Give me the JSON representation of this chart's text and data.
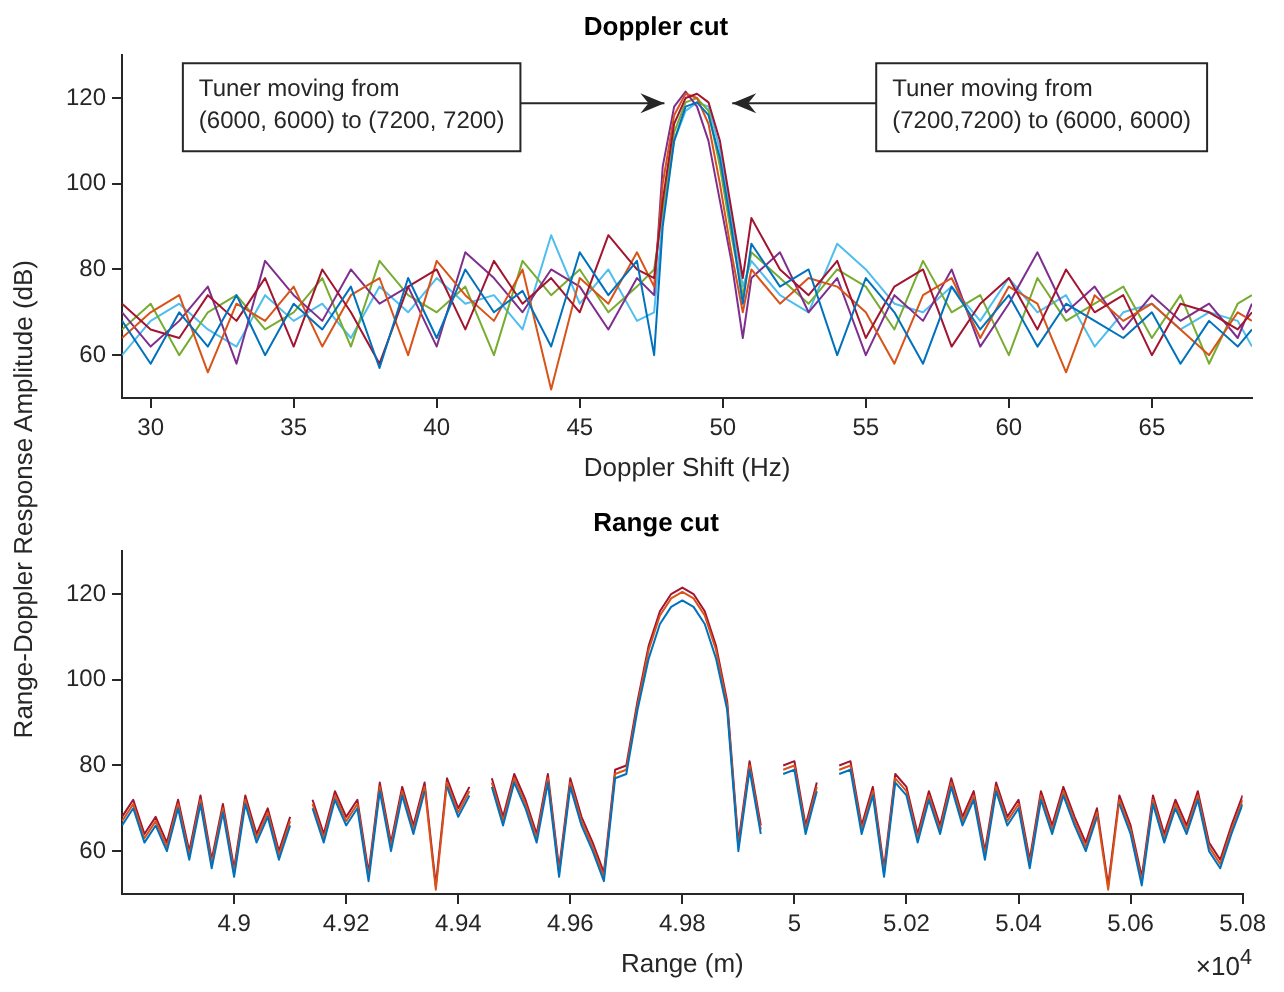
{
  "chart_data": [
    {
      "type": "line",
      "title": "Doppler cut",
      "xlabel": "Doppler Shift (Hz)",
      "ylabel": "Range-Doppler Response Amplitude (dB)",
      "x": [
        29,
        30,
        31,
        32,
        33,
        34,
        35,
        36,
        37,
        38,
        39,
        40,
        41,
        42,
        43,
        44,
        45,
        46,
        47,
        47.6,
        47.9,
        48.3,
        48.7,
        49.1,
        49.5,
        49.9,
        50.3,
        50.7,
        51,
        52,
        53,
        54,
        55,
        56,
        57,
        58,
        59,
        60,
        61,
        62,
        63,
        64,
        65,
        66,
        67,
        68,
        68.5
      ],
      "series": [
        {
          "color": "#0072bd",
          "values": [
            68,
            58,
            70,
            62,
            74,
            60,
            72,
            66,
            76,
            57,
            78,
            64,
            80,
            70,
            75,
            62,
            84,
            74,
            82,
            60,
            90,
            110,
            118,
            119,
            116,
            106,
            90,
            72,
            86,
            76,
            80,
            60,
            78,
            70,
            58,
            76,
            66,
            74,
            62,
            72,
            68,
            64,
            70,
            58,
            68,
            62,
            66
          ]
        },
        {
          "color": "#a2142f",
          "values": [
            72,
            66,
            64,
            74,
            68,
            78,
            62,
            80,
            70,
            58,
            76,
            80,
            66,
            82,
            72,
            78,
            70,
            88,
            80,
            78,
            96,
            114,
            120,
            121,
            119,
            110,
            94,
            78,
            92,
            80,
            74,
            82,
            64,
            76,
            80,
            62,
            72,
            78,
            66,
            80,
            70,
            74,
            60,
            72,
            70,
            66,
            70
          ]
        },
        {
          "color": "#d95319",
          "values": [
            64,
            70,
            74,
            56,
            72,
            68,
            76,
            62,
            74,
            78,
            60,
            82,
            74,
            68,
            80,
            52,
            78,
            72,
            84,
            76,
            100,
            116,
            121,
            120,
            114,
            100,
            84,
            70,
            80,
            72,
            78,
            76,
            70,
            58,
            74,
            78,
            64,
            76,
            72,
            56,
            74,
            68,
            72,
            66,
            60,
            70,
            68
          ]
        },
        {
          "color": "#7e2f8e",
          "values": [
            70,
            62,
            68,
            76,
            58,
            82,
            74,
            68,
            80,
            72,
            76,
            62,
            84,
            78,
            70,
            80,
            76,
            66,
            78,
            74,
            104,
            118,
            121.5,
            118,
            110,
            96,
            82,
            64,
            78,
            84,
            70,
            78,
            60,
            74,
            68,
            80,
            62,
            72,
            84,
            70,
            76,
            66,
            74,
            68,
            72,
            64,
            72
          ]
        },
        {
          "color": "#77ac30",
          "values": [
            66,
            72,
            60,
            70,
            74,
            66,
            70,
            78,
            62,
            82,
            74,
            70,
            76,
            60,
            82,
            74,
            80,
            70,
            76,
            80,
            94,
            112,
            119,
            120,
            117,
            104,
            88,
            74,
            84,
            78,
            72,
            80,
            76,
            66,
            82,
            70,
            74,
            60,
            78,
            68,
            72,
            76,
            64,
            74,
            58,
            72,
            74
          ]
        },
        {
          "color": "#4dbeee",
          "values": [
            60,
            68,
            72,
            66,
            62,
            74,
            68,
            72,
            64,
            76,
            70,
            78,
            72,
            74,
            66,
            88,
            72,
            80,
            68,
            70,
            92,
            110,
            117,
            119,
            118,
            108,
            92,
            76,
            82,
            74,
            70,
            86,
            80,
            72,
            70,
            76,
            68,
            78,
            70,
            74,
            62,
            70,
            72,
            66,
            70,
            68,
            62
          ]
        }
      ],
      "xlim": [
        29,
        68.5
      ],
      "xticks": [
        30,
        35,
        40,
        45,
        50,
        55,
        60,
        65
      ],
      "ylim": [
        50,
        130
      ],
      "yticks": [
        60,
        80,
        100,
        120
      ],
      "annotations": [
        "Tuner moving from\n(6000, 6000) to (7200, 7200)",
        "Tuner moving from\n(7200,7200) to (6000, 6000)"
      ]
    },
    {
      "type": "line",
      "title": "Range cut",
      "xlabel": "Range (m)",
      "x": [
        4.88,
        4.882,
        4.884,
        4.886,
        4.888,
        4.89,
        4.892,
        4.894,
        4.896,
        4.898,
        4.9,
        4.902,
        4.904,
        4.906,
        4.908,
        4.91,
        4.912,
        4.914,
        4.916,
        4.918,
        4.92,
        4.922,
        4.924,
        4.926,
        4.928,
        4.93,
        4.932,
        4.934,
        4.936,
        4.938,
        4.94,
        4.942,
        4.944,
        4.946,
        4.948,
        4.95,
        4.952,
        4.954,
        4.956,
        4.958,
        4.96,
        4.962,
        4.964,
        4.966,
        4.968,
        4.97,
        4.972,
        4.974,
        4.976,
        4.978,
        4.98,
        4.982,
        4.984,
        4.986,
        4.988,
        4.99,
        4.992,
        4.994,
        4.996,
        4.998,
        5,
        5.002,
        5.004,
        5.006,
        5.008,
        5.01,
        5.012,
        5.014,
        5.016,
        5.018,
        5.02,
        5.022,
        5.024,
        5.026,
        5.028,
        5.03,
        5.032,
        5.034,
        5.036,
        5.038,
        5.04,
        5.042,
        5.044,
        5.046,
        5.048,
        5.05,
        5.052,
        5.054,
        5.056,
        5.058,
        5.06,
        5.062,
        5.064,
        5.066,
        5.068,
        5.07,
        5.072,
        5.074,
        5.076,
        5.078,
        5.08
      ],
      "series": [
        {
          "color": "#0072bd",
          "values": [
            66,
            70,
            62,
            66,
            60,
            70,
            58,
            71,
            56,
            69,
            54,
            71,
            62,
            68,
            58,
            66,
            null,
            70,
            62,
            72,
            66,
            70,
            53,
            74,
            60,
            73,
            64,
            74,
            null,
            75,
            68,
            73,
            null,
            75,
            66,
            76,
            70,
            62,
            76,
            54,
            75,
            66,
            60,
            53,
            77,
            78,
            93,
            105,
            113,
            117,
            118.5,
            117,
            113,
            105,
            93,
            60,
            79,
            64,
            null,
            78,
            79,
            64,
            74,
            null,
            78,
            79,
            64,
            73,
            54,
            76,
            73,
            62,
            72,
            64,
            75,
            66,
            72,
            58,
            74,
            66,
            70,
            56,
            72,
            64,
            73,
            66,
            60,
            68,
            null,
            71,
            64,
            52,
            71,
            62,
            70,
            64,
            72,
            60,
            56,
            64,
            71
          ]
        },
        {
          "color": "#d95319",
          "values": [
            67,
            71,
            63,
            67,
            61,
            71,
            59,
            72,
            57,
            70,
            55,
            72,
            63,
            69,
            59,
            67,
            null,
            71,
            63,
            73,
            67,
            71,
            54,
            75,
            61,
            74,
            65,
            75,
            51,
            76,
            69,
            74,
            null,
            76,
            67,
            77,
            71,
            63,
            77,
            55,
            76,
            67,
            61,
            54,
            78,
            79,
            94,
            107,
            115,
            119,
            120.5,
            119,
            115,
            107,
            94,
            61,
            80,
            65,
            null,
            79,
            80,
            65,
            75,
            null,
            79,
            80,
            65,
            74,
            55,
            77,
            74,
            63,
            73,
            65,
            76,
            67,
            73,
            59,
            75,
            67,
            71,
            57,
            73,
            65,
            74,
            67,
            61,
            69,
            51,
            72,
            65,
            53,
            72,
            63,
            71,
            65,
            73,
            61,
            57,
            65,
            72
          ]
        },
        {
          "color": "#a2142f",
          "values": [
            68,
            72,
            64,
            68,
            62,
            72,
            60,
            73,
            58,
            71,
            56,
            73,
            64,
            70,
            60,
            68,
            null,
            72,
            64,
            74,
            68,
            72,
            55,
            76,
            62,
            75,
            66,
            76,
            52,
            77,
            70,
            75,
            null,
            77,
            68,
            78,
            72,
            64,
            78,
            56,
            77,
            68,
            62,
            55,
            79,
            80,
            95,
            108,
            116,
            120,
            121.5,
            120,
            116,
            108,
            95,
            62,
            81,
            66,
            null,
            80,
            81,
            66,
            76,
            null,
            80,
            81,
            66,
            75,
            56,
            78,
            75,
            64,
            74,
            66,
            77,
            68,
            74,
            60,
            76,
            68,
            72,
            58,
            74,
            66,
            75,
            68,
            62,
            70,
            52,
            73,
            66,
            54,
            73,
            64,
            72,
            66,
            74,
            62,
            58,
            66,
            73
          ]
        }
      ],
      "xlim": [
        4.88,
        5.08
      ],
      "xticks": [
        4.9,
        4.92,
        4.94,
        4.96,
        4.98,
        5,
        5.02,
        5.04,
        5.06,
        5.08
      ],
      "ylim": [
        50,
        130
      ],
      "yticks": [
        60,
        80,
        100,
        120
      ],
      "annotations": [
        "×10$^{4}$"
      ]
    }
  ]
}
